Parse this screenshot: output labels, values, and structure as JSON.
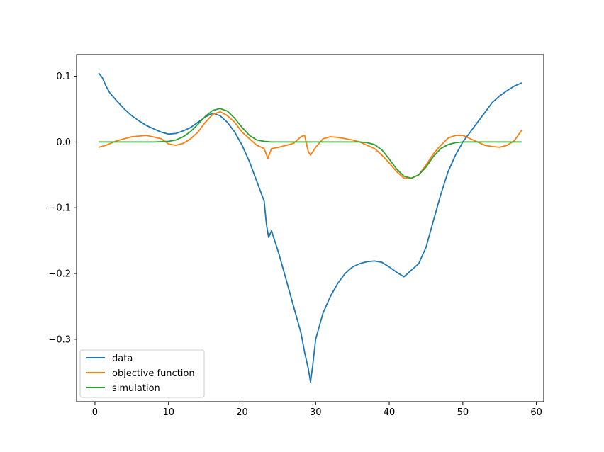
{
  "chart_data": {
    "type": "line",
    "title": "",
    "xlabel": "",
    "ylabel": "",
    "xlim": [
      -2.5,
      61
    ],
    "ylim": [
      -0.395,
      0.133
    ],
    "xticks": [
      0,
      10,
      20,
      30,
      40,
      50,
      60
    ],
    "yticks": [
      0.1,
      0.0,
      -0.1,
      -0.2,
      -0.3
    ],
    "xtick_labels": [
      "0",
      "10",
      "20",
      "30",
      "40",
      "50",
      "60"
    ],
    "ytick_labels": [
      "0.1",
      "0.0",
      "−0.1",
      "−0.2",
      "−0.3"
    ],
    "grid": false,
    "legend_position": "lower-left",
    "series": [
      {
        "name": "data",
        "color": "#1f77b4",
        "x": [
          0.5,
          1.0,
          1.5,
          2.0,
          3.0,
          4.0,
          5.0,
          6.0,
          7.0,
          8.0,
          9.0,
          10.0,
          11.0,
          12.0,
          13.0,
          14.0,
          15.0,
          16.0,
          17.0,
          18.0,
          19.0,
          20.0,
          21.0,
          22.0,
          23.0,
          23.3,
          23.6,
          24.0,
          25.0,
          26.0,
          27.0,
          27.5,
          28.0,
          28.5,
          29.0,
          29.3,
          29.6,
          30.0,
          31.0,
          32.0,
          33.0,
          34.0,
          35.0,
          36.0,
          37.0,
          38.0,
          39.0,
          40.0,
          41.0,
          42.0,
          43.0,
          44.0,
          45.0,
          46.0,
          47.0,
          48.0,
          49.0,
          50.0,
          51.0,
          52.0,
          53.0,
          54.0,
          55.0,
          56.0,
          57.0,
          58.0
        ],
        "y": [
          0.105,
          0.098,
          0.085,
          0.075,
          0.062,
          0.05,
          0.04,
          0.032,
          0.025,
          0.02,
          0.015,
          0.012,
          0.013,
          0.017,
          0.022,
          0.03,
          0.038,
          0.044,
          0.04,
          0.03,
          0.015,
          -0.005,
          -0.03,
          -0.06,
          -0.09,
          -0.125,
          -0.145,
          -0.135,
          -0.17,
          -0.21,
          -0.25,
          -0.27,
          -0.29,
          -0.32,
          -0.345,
          -0.365,
          -0.34,
          -0.3,
          -0.26,
          -0.235,
          -0.215,
          -0.2,
          -0.19,
          -0.185,
          -0.182,
          -0.181,
          -0.183,
          -0.19,
          -0.198,
          -0.205,
          -0.195,
          -0.185,
          -0.16,
          -0.12,
          -0.08,
          -0.045,
          -0.02,
          0.0,
          0.015,
          0.03,
          0.045,
          0.06,
          0.07,
          0.078,
          0.085,
          0.09
        ]
      },
      {
        "name": "objective function",
        "color": "#ff7f0e",
        "x": [
          0.5,
          1.5,
          3.0,
          5.0,
          7.0,
          9.0,
          10.0,
          11.0,
          12.0,
          13.0,
          14.0,
          15.0,
          16.0,
          17.0,
          18.0,
          19.0,
          20.0,
          21.0,
          22.0,
          23.0,
          23.5,
          24.0,
          25.0,
          26.0,
          27.0,
          28.0,
          28.5,
          29.0,
          29.3,
          30.0,
          31.0,
          32.0,
          33.0,
          34.0,
          35.0,
          36.0,
          37.0,
          38.0,
          39.0,
          40.0,
          41.0,
          42.0,
          43.0,
          44.0,
          45.0,
          46.0,
          47.0,
          48.0,
          49.0,
          50.0,
          51.0,
          52.0,
          53.0,
          54.0,
          55.0,
          56.0,
          57.0,
          58.0
        ],
        "y": [
          -0.008,
          -0.005,
          0.002,
          0.008,
          0.01,
          0.005,
          -0.003,
          -0.005,
          -0.002,
          0.005,
          0.015,
          0.03,
          0.042,
          0.046,
          0.04,
          0.03,
          0.015,
          0.005,
          -0.005,
          -0.01,
          -0.025,
          -0.01,
          -0.008,
          -0.005,
          -0.002,
          0.008,
          0.01,
          -0.015,
          -0.02,
          -0.008,
          0.005,
          0.008,
          0.007,
          0.005,
          0.003,
          0.0,
          -0.005,
          -0.01,
          -0.02,
          -0.032,
          -0.045,
          -0.055,
          -0.055,
          -0.05,
          -0.035,
          -0.018,
          -0.005,
          0.006,
          0.01,
          0.01,
          0.005,
          0.0,
          -0.005,
          -0.007,
          -0.008,
          -0.005,
          0.002,
          0.018
        ]
      },
      {
        "name": "simulation",
        "color": "#2ca02c",
        "x": [
          0.5,
          2.0,
          4.0,
          6.0,
          8.0,
          10.0,
          11.0,
          12.0,
          13.0,
          14.0,
          15.0,
          16.0,
          17.0,
          18.0,
          19.0,
          20.0,
          21.0,
          22.0,
          23.0,
          24.0,
          26.0,
          28.0,
          30.0,
          32.0,
          34.0,
          36.0,
          37.0,
          38.0,
          39.0,
          40.0,
          41.0,
          42.0,
          43.0,
          44.0,
          45.0,
          46.0,
          47.0,
          48.0,
          49.0,
          50.0,
          52.0,
          54.0,
          56.0,
          58.0
        ],
        "y": [
          0.0,
          0.0,
          0.0,
          0.0,
          0.0,
          0.001,
          0.003,
          0.008,
          0.016,
          0.027,
          0.039,
          0.048,
          0.051,
          0.047,
          0.036,
          0.022,
          0.01,
          0.003,
          0.001,
          0.0,
          0.0,
          0.0,
          0.0,
          0.0,
          0.0,
          0.0,
          -0.001,
          -0.004,
          -0.012,
          -0.026,
          -0.041,
          -0.052,
          -0.055,
          -0.05,
          -0.038,
          -0.022,
          -0.01,
          -0.004,
          -0.001,
          0.0,
          0.0,
          0.0,
          0.0,
          0.0
        ]
      }
    ]
  }
}
